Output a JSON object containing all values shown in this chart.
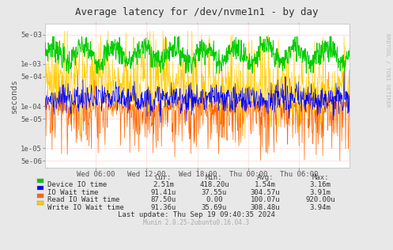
{
  "title": "Average latency for /dev/nvme1n1 - by day",
  "ylabel": "seconds",
  "bg_color": "#e8e8e8",
  "plot_bg_color": "#ffffff",
  "grid_color": "#ff9999",
  "x_ticks_labels": [
    "Wed 06:00",
    "Wed 12:00",
    "Wed 18:00",
    "Thu 00:00",
    "Thu 06:00"
  ],
  "y_ticks": [
    5e-06,
    1e-05,
    5e-05,
    0.0001,
    0.0005,
    0.001,
    0.005
  ],
  "y_ticks_labels": [
    "5e-06",
    "1e-05",
    "5e-05",
    "1e-04",
    "5e-04",
    "1e-03",
    "5e-03"
  ],
  "ylim_min": 3.5e-06,
  "ylim_max": 0.009,
  "legend_items": [
    {
      "label": "Device IO time",
      "color": "#00cc00"
    },
    {
      "label": "IO Wait time",
      "color": "#0000ff"
    },
    {
      "label": "Read IO Wait time",
      "color": "#ff6600"
    },
    {
      "label": "Write IO Wait time",
      "color": "#ffcc00"
    }
  ],
  "legend_data": [
    [
      "2.51m",
      "418.20u",
      "1.54m",
      "3.16m"
    ],
    [
      "91.41u",
      "37.55u",
      "304.57u",
      "3.91m"
    ],
    [
      "87.50u",
      "0.00",
      "100.07u",
      "920.00u"
    ],
    [
      "91.36u",
      "35.69u",
      "308.48u",
      "3.94m"
    ]
  ],
  "last_update": "Last update: Thu Sep 19 09:40:35 2024",
  "munin_version": "Munin 2.0.25-2ubuntu0.16.04.3",
  "rrdtool_label": "RRDTOOL / TOBI OETIKER",
  "font_family": "DejaVu Sans Mono",
  "n_points": 800,
  "seed": 7
}
